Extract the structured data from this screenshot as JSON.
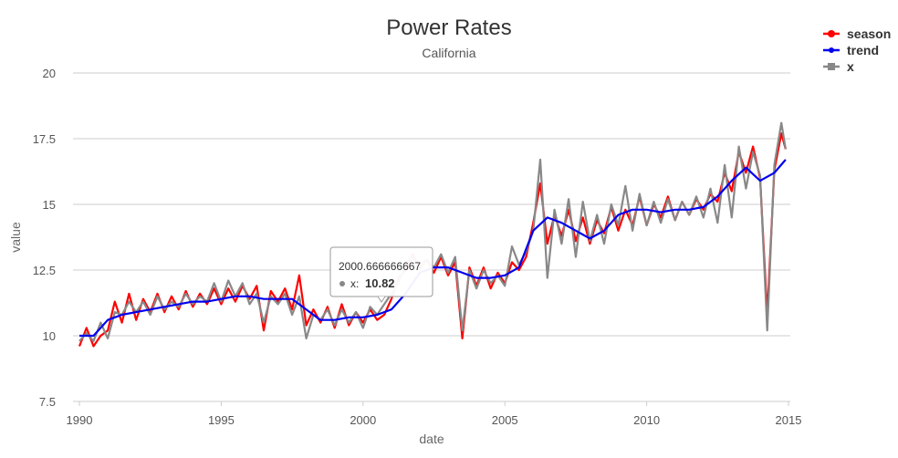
{
  "chart_data": {
    "type": "line",
    "title": "Power Rates",
    "subtitle": "California",
    "xlabel": "date",
    "ylabel": "value",
    "xlim": [
      1990,
      2015
    ],
    "ylim": [
      7.5,
      20
    ],
    "x_ticks": [
      1990,
      1995,
      2000,
      2005,
      2010,
      2015
    ],
    "y_ticks": [
      7.5,
      10,
      12.5,
      15,
      17.5,
      20
    ],
    "y_tick_labels": [
      "7.5",
      "10",
      "12.5",
      "15",
      "17.5",
      "20"
    ],
    "grid": true,
    "legend_position": "top-right",
    "series": [
      {
        "name": "season",
        "color": "#ff0000",
        "x": [
          1990.0,
          1990.25,
          1990.5,
          1990.75,
          1991.0,
          1991.25,
          1991.5,
          1991.75,
          1992.0,
          1992.25,
          1992.5,
          1992.75,
          1993.0,
          1993.25,
          1993.5,
          1993.75,
          1994.0,
          1994.25,
          1994.5,
          1994.75,
          1995.0,
          1995.25,
          1995.5,
          1995.75,
          1996.0,
          1996.25,
          1996.5,
          1996.75,
          1997.0,
          1997.25,
          1997.5,
          1997.75,
          1998.0,
          1998.25,
          1998.5,
          1998.75,
          1999.0,
          1999.25,
          1999.5,
          1999.75,
          2000.0,
          2000.25,
          2000.5,
          2000.75,
          2001.0,
          2001.25,
          2001.5,
          2001.75,
          2002.0,
          2002.25,
          2002.5,
          2002.75,
          2003.0,
          2003.25,
          2003.5,
          2003.75,
          2004.0,
          2004.25,
          2004.5,
          2004.75,
          2005.0,
          2005.25,
          2005.5,
          2005.75,
          2006.0,
          2006.25,
          2006.5,
          2006.75,
          2007.0,
          2007.25,
          2007.5,
          2007.75,
          2008.0,
          2008.25,
          2008.5,
          2008.75,
          2009.0,
          2009.25,
          2009.5,
          2009.75,
          2010.0,
          2010.25,
          2010.5,
          2010.75,
          2011.0,
          2011.25,
          2011.5,
          2011.75,
          2012.0,
          2012.25,
          2012.5,
          2012.75,
          2013.0,
          2013.25,
          2013.5,
          2013.75,
          2014.0,
          2014.25,
          2014.5,
          2014.75,
          2014.9
        ],
        "y": [
          9.6,
          10.3,
          9.6,
          10.0,
          10.2,
          11.3,
          10.5,
          11.6,
          10.6,
          11.4,
          10.9,
          11.6,
          10.9,
          11.5,
          11.0,
          11.7,
          11.1,
          11.6,
          11.2,
          11.8,
          11.2,
          11.8,
          11.3,
          11.9,
          11.4,
          11.9,
          10.2,
          11.7,
          11.3,
          11.8,
          11.0,
          12.3,
          10.4,
          11.0,
          10.5,
          11.1,
          10.3,
          11.2,
          10.4,
          10.9,
          10.5,
          11.0,
          10.6,
          10.8,
          11.4,
          12.2,
          12.5,
          13.1,
          12.6,
          12.9,
          12.4,
          13.0,
          12.3,
          12.8,
          9.9,
          12.6,
          11.9,
          12.6,
          11.8,
          12.4,
          12.0,
          12.8,
          12.5,
          13.0,
          14.3,
          15.8,
          13.5,
          14.6,
          13.8,
          14.8,
          13.6,
          14.5,
          13.5,
          14.4,
          13.9,
          14.9,
          14.0,
          14.8,
          14.2,
          15.3,
          14.2,
          15.0,
          14.5,
          15.3,
          14.4,
          15.1,
          14.6,
          15.2,
          14.8,
          15.4,
          15.1,
          16.2,
          15.5,
          17.0,
          16.2,
          17.2,
          16.0,
          10.8,
          16.3,
          17.7,
          17.1
        ]
      },
      {
        "name": "trend",
        "color": "#0000ee",
        "x": [
          1990.0,
          1990.5,
          1991.0,
          1991.5,
          1992.0,
          1992.5,
          1993.0,
          1993.5,
          1994.0,
          1994.5,
          1995.0,
          1995.5,
          1996.0,
          1996.5,
          1997.0,
          1997.5,
          1998.0,
          1998.5,
          1999.0,
          1999.5,
          2000.0,
          2000.5,
          2001.0,
          2001.5,
          2002.0,
          2002.5,
          2003.0,
          2003.5,
          2004.0,
          2004.5,
          2005.0,
          2005.5,
          2006.0,
          2006.5,
          2007.0,
          2007.5,
          2008.0,
          2008.5,
          2009.0,
          2009.5,
          2010.0,
          2010.5,
          2011.0,
          2011.5,
          2012.0,
          2012.5,
          2013.0,
          2013.5,
          2014.0,
          2014.5,
          2014.9
        ],
        "y": [
          10.0,
          10.0,
          10.6,
          10.8,
          10.9,
          11.0,
          11.1,
          11.2,
          11.3,
          11.3,
          11.4,
          11.5,
          11.5,
          11.4,
          11.4,
          11.4,
          11.0,
          10.6,
          10.6,
          10.7,
          10.7,
          10.8,
          11.0,
          11.6,
          12.4,
          12.6,
          12.6,
          12.4,
          12.2,
          12.2,
          12.3,
          12.6,
          14.0,
          14.5,
          14.3,
          14.0,
          13.7,
          14.0,
          14.6,
          14.8,
          14.8,
          14.7,
          14.8,
          14.8,
          14.9,
          15.3,
          15.9,
          16.4,
          15.9,
          16.2,
          16.7
        ]
      },
      {
        "name": "x",
        "color": "#888888",
        "x": [
          1990.0,
          1990.25,
          1990.5,
          1990.75,
          1991.0,
          1991.25,
          1991.5,
          1991.75,
          1992.0,
          1992.25,
          1992.5,
          1992.75,
          1993.0,
          1993.25,
          1993.5,
          1993.75,
          1994.0,
          1994.25,
          1994.5,
          1994.75,
          1995.0,
          1995.25,
          1995.5,
          1995.75,
          1996.0,
          1996.25,
          1996.5,
          1996.75,
          1997.0,
          1997.25,
          1997.5,
          1997.75,
          1998.0,
          1998.25,
          1998.5,
          1998.75,
          1999.0,
          1999.25,
          1999.5,
          1999.75,
          2000.0,
          2000.25,
          2000.5,
          2000.75,
          2001.0,
          2001.25,
          2001.5,
          2001.75,
          2002.0,
          2002.25,
          2002.5,
          2002.75,
          2003.0,
          2003.25,
          2003.5,
          2003.75,
          2004.0,
          2004.25,
          2004.5,
          2004.75,
          2005.0,
          2005.25,
          2005.5,
          2005.75,
          2006.0,
          2006.25,
          2006.5,
          2006.75,
          2007.0,
          2007.25,
          2007.5,
          2007.75,
          2008.0,
          2008.25,
          2008.5,
          2008.75,
          2009.0,
          2009.25,
          2009.5,
          2009.75,
          2010.0,
          2010.25,
          2010.5,
          2010.75,
          2011.0,
          2011.25,
          2011.5,
          2011.75,
          2012.0,
          2012.25,
          2012.5,
          2012.75,
          2013.0,
          2013.25,
          2013.5,
          2013.75,
          2014.0,
          2014.25,
          2014.5,
          2014.75,
          2014.9
        ],
        "y": [
          9.8,
          10.1,
          9.8,
          10.5,
          9.9,
          10.9,
          10.8,
          11.3,
          10.9,
          11.3,
          10.8,
          11.5,
          11.0,
          11.3,
          11.1,
          11.6,
          11.2,
          11.5,
          11.3,
          12.0,
          11.3,
          12.1,
          11.5,
          12.0,
          11.2,
          11.6,
          10.5,
          11.5,
          11.2,
          11.6,
          10.8,
          11.5,
          9.9,
          10.8,
          10.6,
          11.0,
          10.4,
          11.0,
          10.5,
          10.9,
          10.3,
          11.1,
          10.8,
          11.2,
          11.6,
          12.0,
          12.8,
          13.0,
          12.5,
          12.9,
          12.6,
          13.1,
          12.4,
          13.0,
          10.2,
          12.5,
          11.8,
          12.5,
          12.0,
          12.3,
          11.9,
          13.4,
          12.7,
          13.2,
          14.0,
          16.7,
          12.2,
          14.8,
          13.5,
          15.2,
          13.0,
          15.1,
          13.6,
          14.6,
          13.5,
          15.0,
          14.2,
          15.7,
          14.0,
          15.4,
          14.2,
          15.1,
          14.3,
          15.2,
          14.4,
          15.1,
          14.6,
          15.3,
          14.5,
          15.6,
          14.3,
          16.5,
          14.5,
          17.2,
          15.6,
          17.0,
          16.1,
          10.2,
          16.5,
          18.1,
          17.1
        ]
      }
    ],
    "tooltip": {
      "x_label": "2000.666666667",
      "series_label": "x:",
      "value": "10.82",
      "x": 2000.666666667,
      "y": 10.82
    }
  }
}
